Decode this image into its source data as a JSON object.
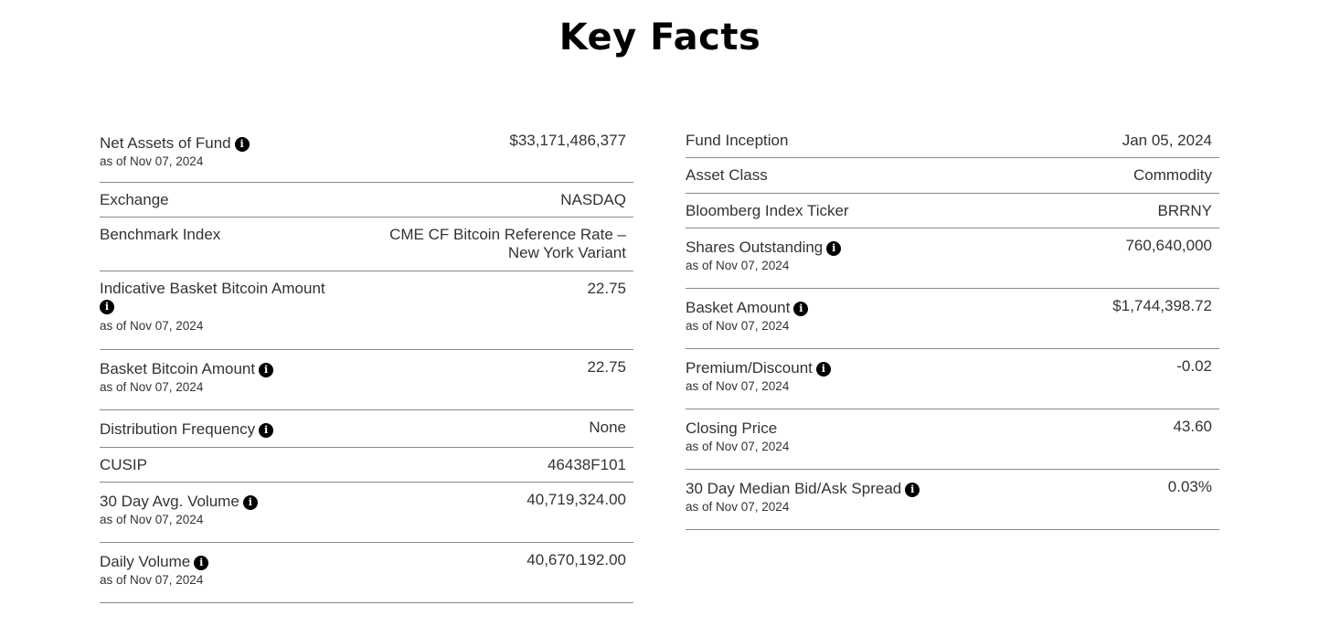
{
  "page": {
    "title": "Key Facts"
  },
  "icons": {
    "info": "info-icon",
    "info_glyph": "i"
  },
  "left": [
    {
      "label": "Net Assets of Fund",
      "info": true,
      "as_of": "as of Nov 07, 2024",
      "value": "$33,171,486,377"
    },
    {
      "label": "Exchange",
      "info": false,
      "as_of": "",
      "value": "NASDAQ"
    },
    {
      "label": "Benchmark Index",
      "info": false,
      "as_of": "",
      "value": "CME CF Bitcoin Reference Rate –",
      "value2": "New York Variant"
    },
    {
      "label": "Indicative Basket Bitcoin Amount",
      "info": true,
      "as_of": "as of Nov 07, 2024",
      "value": "22.75"
    },
    {
      "label": "Basket Bitcoin Amount",
      "info": true,
      "as_of": "as of Nov 07, 2024",
      "value": "22.75"
    },
    {
      "label": "Distribution Frequency",
      "info": true,
      "as_of": "",
      "value": "None"
    },
    {
      "label": "CUSIP",
      "info": false,
      "as_of": "",
      "value": "46438F101"
    },
    {
      "label": "30 Day Avg. Volume",
      "info": true,
      "as_of": "as of Nov 07, 2024",
      "value": "40,719,324.00"
    },
    {
      "label": "Daily Volume",
      "info": true,
      "as_of": "as of Nov 07, 2024",
      "value": "40,670,192.00"
    }
  ],
  "right": [
    {
      "label": "Fund Inception",
      "info": false,
      "as_of": "",
      "value": "Jan 05, 2024"
    },
    {
      "label": "Asset Class",
      "info": false,
      "as_of": "",
      "value": "Commodity"
    },
    {
      "label": "Bloomberg Index Ticker",
      "info": false,
      "as_of": "",
      "value": "BRRNY"
    },
    {
      "label": "Shares Outstanding",
      "info": true,
      "as_of": "as of Nov 07, 2024",
      "value": "760,640,000"
    },
    {
      "label": "Basket Amount",
      "info": true,
      "as_of": "as of Nov 07, 2024",
      "value": "$1,744,398.72"
    },
    {
      "label": "Premium/Discount",
      "info": true,
      "as_of": "as of Nov 07, 2024",
      "value": "-0.02"
    },
    {
      "label": "Closing Price",
      "info": false,
      "as_of": "as of Nov 07, 2024",
      "value": "43.60"
    },
    {
      "label": "30 Day Median Bid/Ask Spread",
      "info": true,
      "as_of": "as of Nov 07, 2024",
      "value": "0.03%"
    }
  ]
}
